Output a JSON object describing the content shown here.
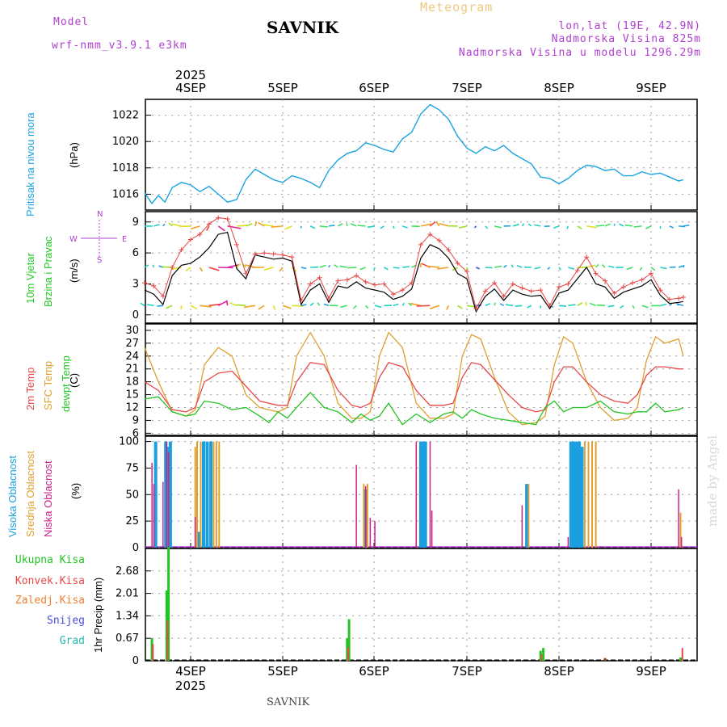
{
  "header": {
    "model_label": "Model",
    "model_name": "wrf-nmm_v3.9.1 e3km",
    "title": "SAVNIK",
    "meteogram": "Meteogram",
    "lonlat": "lon,lat (19E, 42.9N)",
    "altitude": "Nadmorska Visina 825m",
    "model_altitude": "Nadmorska Visina u modelu 1296.29m",
    "footer_title": "SAVNIK",
    "credit": "made by Angel"
  },
  "colors": {
    "pressure": "#1aa3e0",
    "wind_label": "#22cc22",
    "temp2m": "#e84848",
    "sfc": "#e0a030",
    "dew": "#22c422",
    "high_cloud": "#1aa0e0",
    "mid_cloud": "#e0a030",
    "low_cloud": "#cc2288",
    "total_precip": "#22c422",
    "conv": "#e84848",
    "freezing": "#f08030",
    "snow": "#4a4ae0",
    "hail": "#20b8b0",
    "purple": "#b040d0"
  },
  "chart_data": [
    {
      "type": "line",
      "name": "pressure",
      "ylabel": "(hPa)",
      "side_label": "Pritisak na nivou mora",
      "ylim": [
        1014.8,
        1023.2
      ],
      "yticks": [
        "1016",
        "1018",
        "1020",
        "1022"
      ],
      "x": [
        0.0,
        0.08,
        0.15,
        0.22,
        0.3,
        0.4,
        0.5,
        0.6,
        0.7,
        0.8,
        0.9,
        1.0,
        1.1,
        1.2,
        1.3,
        1.4,
        1.5,
        1.6,
        1.7,
        1.8,
        1.9,
        2.0,
        2.1,
        2.2,
        2.3,
        2.4,
        2.5,
        2.6,
        2.7,
        2.8,
        2.9,
        3.0,
        3.1,
        3.2,
        3.3,
        3.4,
        3.5,
        3.6,
        3.7,
        3.8,
        3.9,
        4.0,
        4.1,
        4.2,
        4.3,
        4.4,
        4.5,
        4.6,
        4.7,
        4.8,
        4.9,
        5.0,
        5.1,
        5.2,
        5.3,
        5.4,
        5.5,
        5.6,
        5.7,
        5.8,
        5.85
      ],
      "values": [
        1016.1,
        1015.3,
        1015.9,
        1015.4,
        1016.5,
        1016.9,
        1016.7,
        1016.2,
        1016.6,
        1016.0,
        1015.4,
        1015.6,
        1017.1,
        1017.9,
        1017.5,
        1017.1,
        1016.9,
        1017.4,
        1017.2,
        1016.9,
        1016.5,
        1017.8,
        1018.6,
        1019.1,
        1019.3,
        1019.9,
        1019.7,
        1019.4,
        1019.2,
        1020.2,
        1020.7,
        1022.1,
        1022.8,
        1022.4,
        1021.7,
        1020.4,
        1019.5,
        1019.1,
        1019.6,
        1019.3,
        1019.7,
        1019.1,
        1018.7,
        1018.3,
        1017.3,
        1017.2,
        1016.8,
        1017.2,
        1017.8,
        1018.2,
        1018.1,
        1017.8,
        1017.9,
        1017.4,
        1017.4,
        1017.7,
        1017.5,
        1017.6,
        1017.3,
        1017.0,
        1017.1
      ]
    },
    {
      "type": "line",
      "name": "wind",
      "ylabel": "(m/s)",
      "side_label_1": "10m Vjetar",
      "side_label_2": "Brzina i Pravac",
      "compass": [
        "N",
        "W",
        "E",
        "S"
      ],
      "ylim": [
        -0.8,
        10
      ],
      "yticks": [
        "0",
        "3",
        "6",
        "9"
      ],
      "x": [
        0.0,
        0.1,
        0.2,
        0.3,
        0.4,
        0.5,
        0.6,
        0.7,
        0.8,
        0.9,
        1.0,
        1.1,
        1.2,
        1.3,
        1.4,
        1.5,
        1.6,
        1.7,
        1.8,
        1.9,
        2.0,
        2.1,
        2.2,
        2.3,
        2.4,
        2.5,
        2.6,
        2.7,
        2.8,
        2.9,
        3.0,
        3.1,
        3.2,
        3.3,
        3.4,
        3.5,
        3.6,
        3.7,
        3.8,
        3.9,
        4.0,
        4.1,
        4.2,
        4.3,
        4.4,
        4.5,
        4.6,
        4.7,
        4.8,
        4.9,
        5.0,
        5.1,
        5.2,
        5.3,
        5.4,
        5.5,
        5.6,
        5.7,
        5.8,
        5.85
      ],
      "mean": [
        2.4,
        2.0,
        1.0,
        3.8,
        4.8,
        5.0,
        5.6,
        6.5,
        7.8,
        8.0,
        4.5,
        3.5,
        5.8,
        5.6,
        5.4,
        5.5,
        5.2,
        1.0,
        2.4,
        3.0,
        1.2,
        2.8,
        2.6,
        3.2,
        2.6,
        2.4,
        2.2,
        1.5,
        1.8,
        2.5,
        5.5,
        6.8,
        6.4,
        5.5,
        4.0,
        3.5,
        0.3,
        1.8,
        2.5,
        1.4,
        2.4,
        2.0,
        1.8,
        1.9,
        0.6,
        2.1,
        2.4,
        3.5,
        4.6,
        3.0,
        2.7,
        1.6,
        2.2,
        2.5,
        2.8,
        3.4,
        1.9,
        1.1,
        1.2,
        1.3
      ],
      "gust": [
        3.1,
        2.8,
        1.8,
        4.6,
        6.3,
        7.3,
        7.8,
        8.8,
        9.4,
        9.3,
        6.8,
        4.0,
        5.9,
        6.0,
        5.9,
        5.8,
        5.6,
        1.4,
        3.0,
        3.6,
        1.6,
        3.3,
        3.4,
        3.8,
        3.2,
        2.9,
        3.0,
        2.0,
        2.4,
        3.1,
        6.8,
        7.8,
        7.2,
        6.3,
        5.0,
        4.2,
        0.6,
        2.3,
        3.1,
        1.8,
        3.0,
        2.6,
        2.3,
        2.4,
        0.9,
        2.7,
        3.0,
        4.3,
        5.6,
        4.0,
        3.3,
        2.1,
        2.7,
        3.1,
        3.4,
        4.0,
        2.4,
        1.5,
        1.6,
        1.7
      ]
    },
    {
      "type": "line",
      "name": "temperature",
      "ylabel": "(C)",
      "side_label_1": "2m Temp",
      "side_label_2": "SFC Temp",
      "side_label_3": "dewpt Temp",
      "ylim": [
        5.5,
        31.5
      ],
      "yticks": [
        "6",
        "9",
        "12",
        "15",
        "18",
        "21",
        "24",
        "27",
        "30"
      ],
      "x": [
        0.0,
        0.15,
        0.3,
        0.45,
        0.55,
        0.65,
        0.8,
        0.95,
        1.1,
        1.25,
        1.35,
        1.45,
        1.55,
        1.65,
        1.8,
        1.95,
        2.1,
        2.25,
        2.35,
        2.45,
        2.55,
        2.65,
        2.8,
        2.95,
        3.1,
        3.25,
        3.35,
        3.45,
        3.55,
        3.65,
        3.8,
        3.95,
        4.1,
        4.25,
        4.35,
        4.45,
        4.55,
        4.65,
        4.8,
        4.95,
        5.1,
        5.25,
        5.35,
        5.45,
        5.55,
        5.65,
        5.8,
        5.85
      ],
      "t2m": [
        18.0,
        16.0,
        11.5,
        11.0,
        12.0,
        18.0,
        20.0,
        20.5,
        17.0,
        13.5,
        13.0,
        12.5,
        12.5,
        18.0,
        22.5,
        22.0,
        16.0,
        12.5,
        12.0,
        13.0,
        19.0,
        22.5,
        21.5,
        16.0,
        12.5,
        12.5,
        13.0,
        19.0,
        22.5,
        22.0,
        18.5,
        15.0,
        12.0,
        11.0,
        11.5,
        18.0,
        21.5,
        21.5,
        18.0,
        15.0,
        13.5,
        13.0,
        15.0,
        19.5,
        21.5,
        21.5,
        21.0,
        21.0
      ],
      "sfc": [
        26.0,
        18.0,
        11.0,
        10.0,
        11.5,
        22.0,
        26.0,
        24.0,
        15.0,
        12.0,
        11.5,
        11.0,
        12.0,
        24.0,
        29.5,
        24.0,
        13.0,
        9.5,
        9.5,
        11.0,
        24.0,
        29.5,
        26.0,
        13.0,
        9.5,
        9.5,
        10.5,
        24.0,
        29.0,
        28.0,
        19.0,
        11.0,
        8.0,
        8.5,
        10.0,
        22.0,
        28.5,
        27.0,
        18.0,
        12.0,
        9.0,
        9.5,
        12.0,
        23.0,
        28.5,
        27.0,
        28.0,
        24.0
      ],
      "dew": [
        14.0,
        14.5,
        11.0,
        10.0,
        10.5,
        13.5,
        13.0,
        11.5,
        12.0,
        10.0,
        8.5,
        11.0,
        9.5,
        12.0,
        15.5,
        12.0,
        11.0,
        8.5,
        10.5,
        9.0,
        10.0,
        13.0,
        8.0,
        10.5,
        8.5,
        10.5,
        11.0,
        9.5,
        11.5,
        10.5,
        9.5,
        9.0,
        8.5,
        8.0,
        12.0,
        13.5,
        11.0,
        12.0,
        12.0,
        13.5,
        11.0,
        10.5,
        11.0,
        11.0,
        13.0,
        11.0,
        11.5,
        12.0
      ]
    },
    {
      "type": "bar",
      "name": "cloud_cover",
      "ylabel": "(%)",
      "side_label_1": "Visoka Oblacnost",
      "side_label_2": "Srednja Oblacnost",
      "side_label_3": "Niska Oblacnost",
      "ylim": [
        0,
        105
      ],
      "yticks": [
        "0",
        "25",
        "50",
        "75",
        "100"
      ],
      "high": {
        "x": [
          0.12,
          0.23,
          0.25,
          0.28,
          0.59,
          0.64,
          0.68,
          0.72,
          2.4,
          3.0,
          3.02,
          3.05,
          4.15,
          4.63,
          4.65,
          4.68,
          4.7,
          4.72,
          4.75
        ],
        "values": [
          100,
          100,
          95,
          100,
          15,
          100,
          100,
          100,
          55,
          100,
          100,
          100,
          60,
          100,
          100,
          100,
          100,
          100,
          95
        ]
      },
      "mid": {
        "x": [
          0.55,
          0.57,
          0.61,
          0.75,
          0.78,
          0.81,
          2.38,
          2.42,
          4.17,
          4.78,
          4.82,
          4.86,
          4.9,
          5.82
        ],
        "values": [
          95,
          100,
          100,
          100,
          100,
          100,
          60,
          60,
          60,
          100,
          100,
          100,
          100,
          33
        ]
      },
      "low": {
        "x": [
          0.08,
          0.1,
          0.2,
          0.24,
          0.26,
          0.55,
          2.3,
          2.4,
          2.45,
          2.5,
          2.95,
          3.1,
          3.12,
          4.1,
          4.6,
          5.8,
          5.83
        ],
        "values": [
          80,
          60,
          62,
          100,
          90,
          29,
          78,
          58,
          28,
          25,
          100,
          100,
          35,
          40,
          10,
          55,
          10
        ]
      }
    },
    {
      "type": "bar",
      "name": "precipitation",
      "ylabel": "1hr Precip (mm)",
      "legend": [
        "Ukupna Kisa",
        "Konvek.Kisa",
        "Zaledj.Kisa",
        "Snijeg",
        "Grad"
      ],
      "ylim": [
        0,
        3.35
      ],
      "yticks": [
        "0",
        "0.67",
        "1.34",
        "2.01",
        "2.68"
      ],
      "total": {
        "x": [
          0.08,
          0.24,
          0.26,
          2.2,
          2.22,
          4.3,
          4.33,
          5.82
        ],
        "values": [
          0.67,
          2.1,
          3.4,
          0.67,
          1.24,
          0.3,
          0.38,
          0.1
        ]
      },
      "conv": {
        "x": [
          0.09,
          0.25,
          2.21,
          4.31,
          5.84
        ],
        "values": [
          0.5,
          1.2,
          0.4,
          0.2,
          0.38
        ]
      },
      "snow": {
        "x": [
          5.0
        ],
        "values": [
          0.08
        ]
      }
    }
  ],
  "x_axis": {
    "days": [
      "4SEP",
      "5SEP",
      "6SEP",
      "7SEP",
      "8SEP",
      "9SEP"
    ],
    "year": "2025"
  }
}
